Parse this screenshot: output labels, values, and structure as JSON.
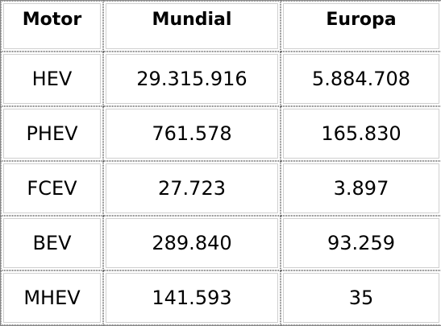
{
  "table": {
    "headers": [
      "Motor",
      "Mundial",
      "Europa"
    ],
    "rows": [
      [
        "HEV",
        "29.315.916",
        "5.884.708"
      ],
      [
        "PHEV",
        "761.578",
        "165.830"
      ],
      [
        "FCEV",
        "27.723",
        "3.897"
      ],
      [
        "BEV",
        "289.840",
        "93.259"
      ],
      [
        "MHEV",
        "141.593",
        "35"
      ]
    ]
  }
}
